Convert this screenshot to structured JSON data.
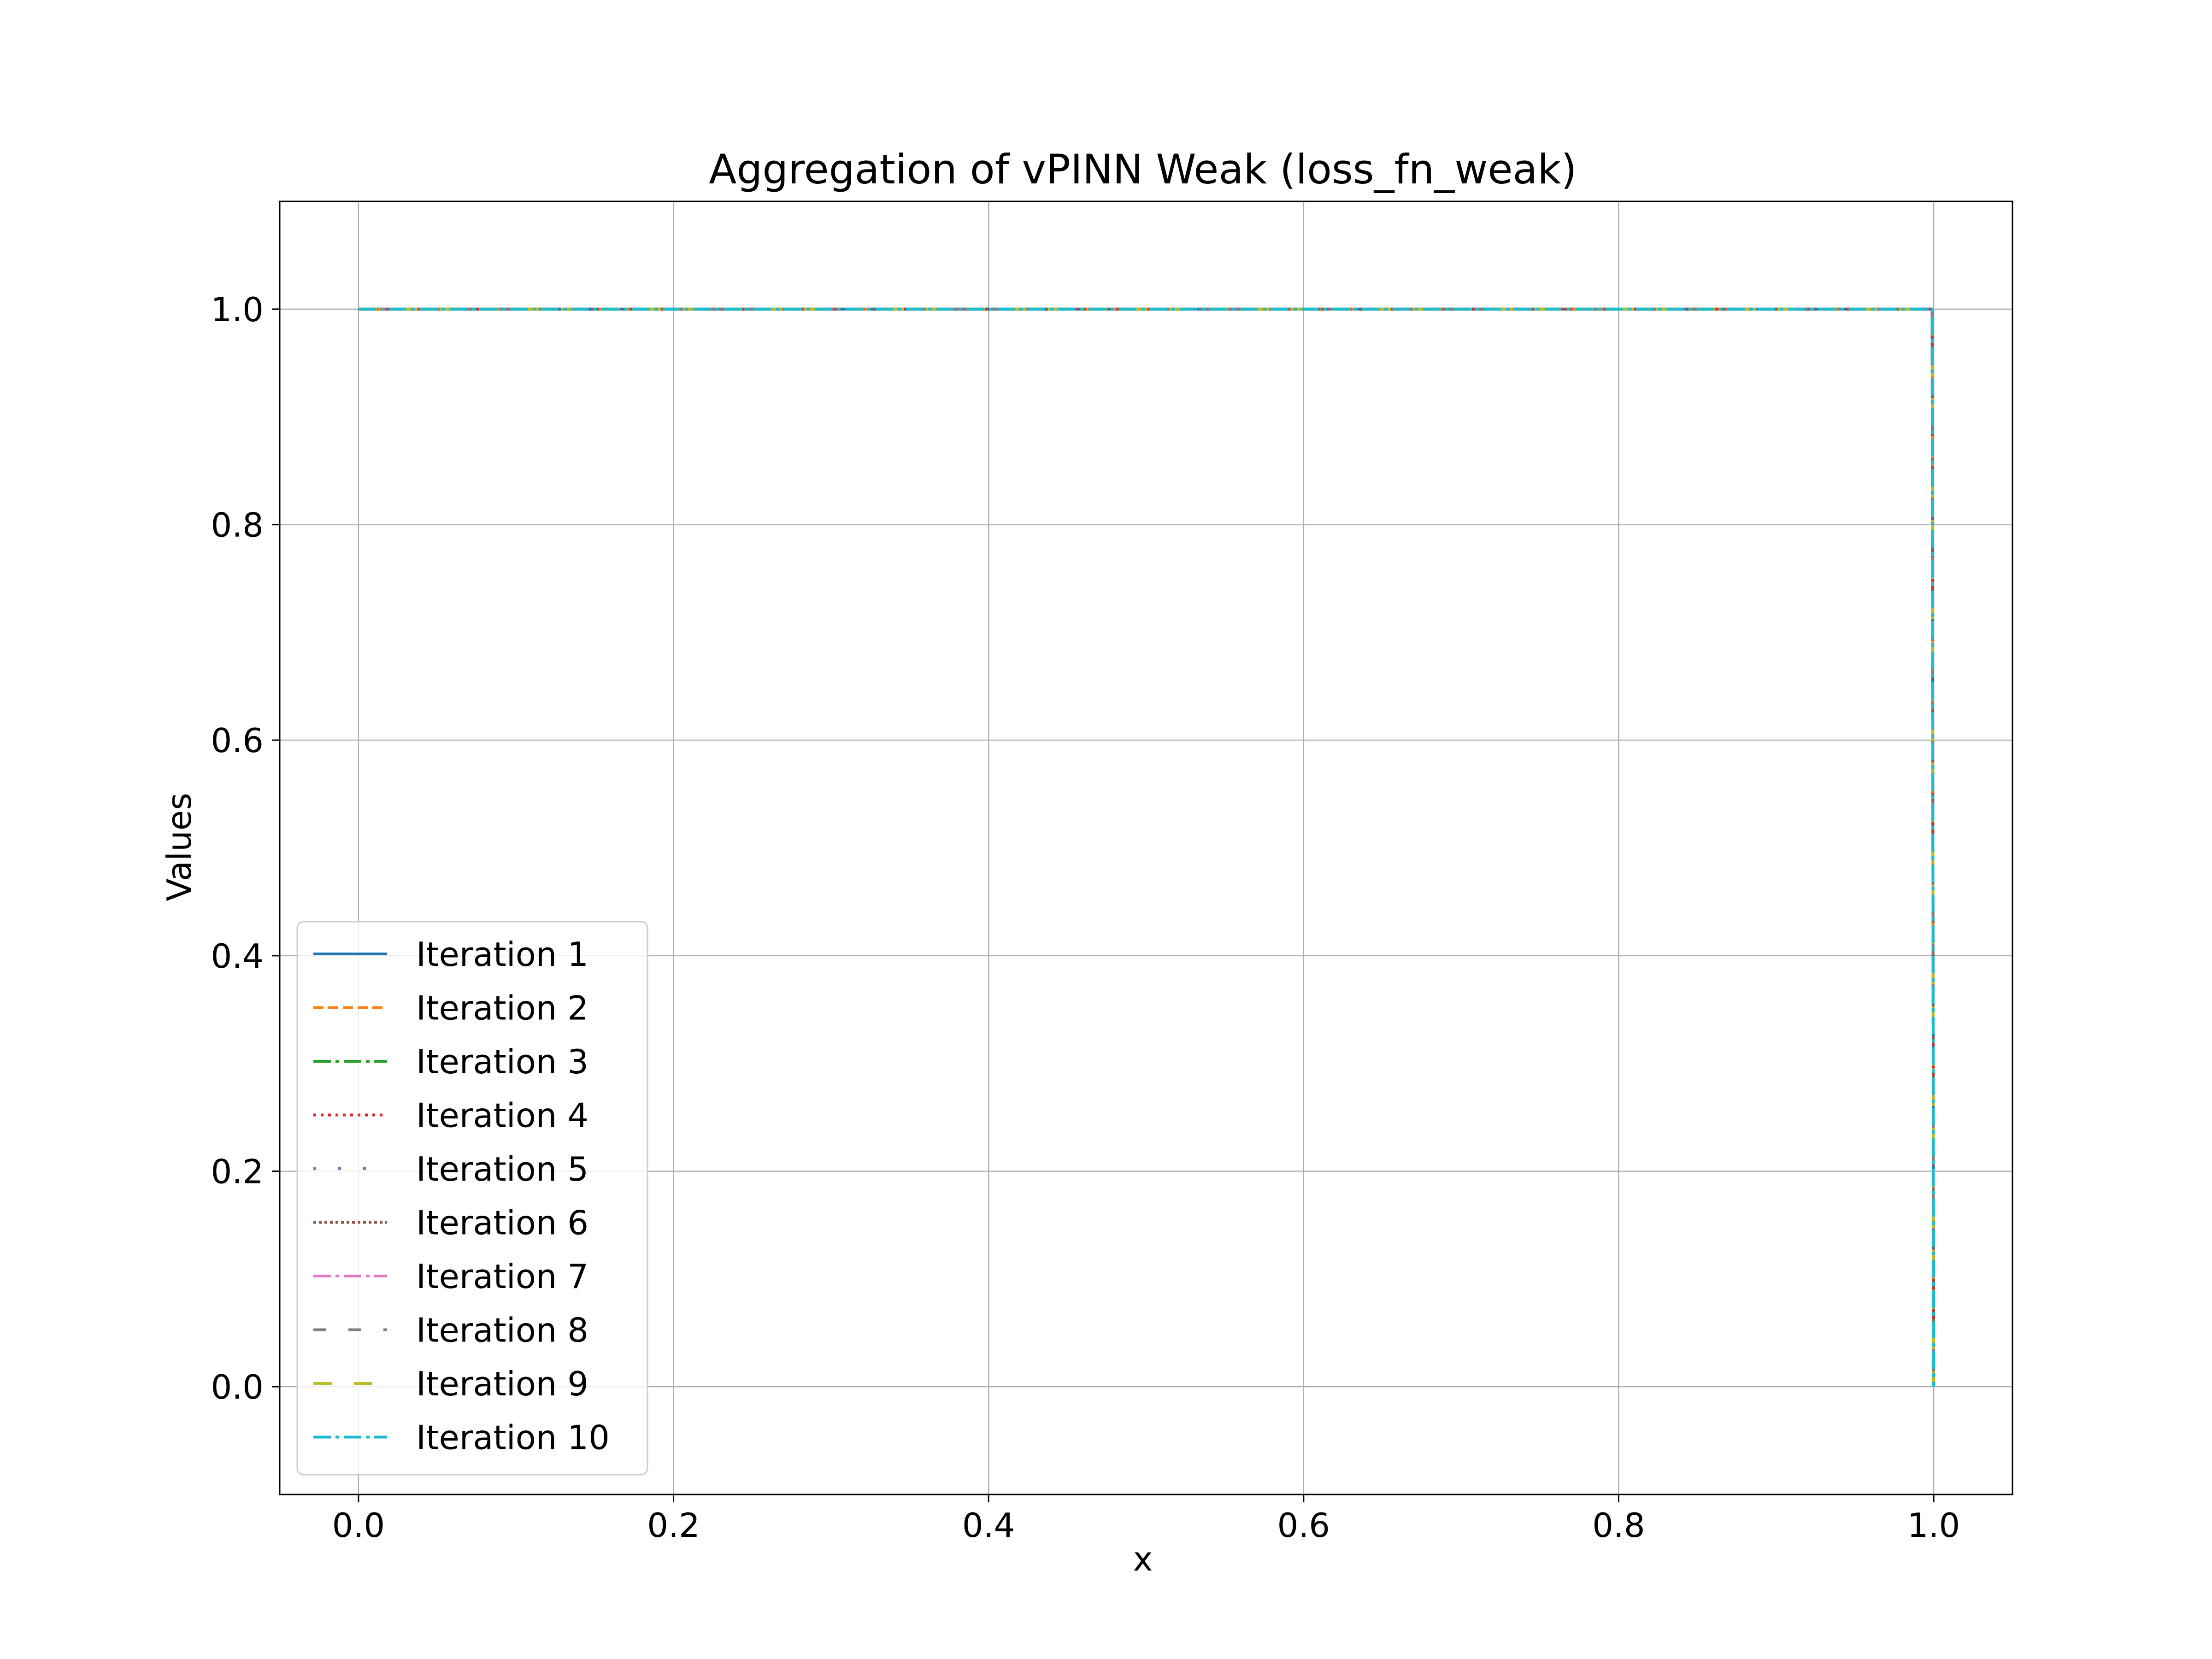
{
  "chart_data": {
    "type": "line",
    "title": "Aggregation of vPINN Weak (loss_fn_weak)",
    "xlabel": "x",
    "ylabel": "Values",
    "xlim": [
      -0.05,
      1.05
    ],
    "ylim": [
      -0.1,
      1.1
    ],
    "xticks": [
      0.0,
      0.2,
      0.4,
      0.6,
      0.8,
      1.0
    ],
    "xtick_labels": [
      "0.0",
      "0.2",
      "0.4",
      "0.6",
      "0.8",
      "1.0"
    ],
    "yticks": [
      0.0,
      0.2,
      0.4,
      0.6,
      0.8,
      1.0
    ],
    "ytick_labels": [
      "0.0",
      "0.2",
      "0.4",
      "0.6",
      "0.8",
      "1.0"
    ],
    "grid": true,
    "legend_position": "lower-left",
    "x": [
      0.0,
      0.999,
      1.0
    ],
    "series": [
      {
        "name": "Iteration 1",
        "values": [
          1.0,
          1.0,
          0.0
        ],
        "color": "#1f77b4",
        "dash": "solid"
      },
      {
        "name": "Iteration 2",
        "values": [
          1.0,
          1.0,
          0.0
        ],
        "color": "#ff7f0e",
        "dash": "dashed"
      },
      {
        "name": "Iteration 3",
        "values": [
          1.0,
          1.0,
          0.0
        ],
        "color": "#2ca02c",
        "dash": "dashdot"
      },
      {
        "name": "Iteration 4",
        "values": [
          1.0,
          1.0,
          0.0
        ],
        "color": "#d62728",
        "dash": "dotted"
      },
      {
        "name": "Iteration 5",
        "values": [
          1.0,
          1.0,
          0.0
        ],
        "color": "#9467bd",
        "dash": "loosedot"
      },
      {
        "name": "Iteration 6",
        "values": [
          1.0,
          1.0,
          0.0
        ],
        "color": "#8c564b",
        "dash": "densedot"
      },
      {
        "name": "Iteration 7",
        "values": [
          1.0,
          1.0,
          0.0
        ],
        "color": "#e377c2",
        "dash": "dashdot2"
      },
      {
        "name": "Iteration 8",
        "values": [
          1.0,
          1.0,
          0.0
        ],
        "color": "#7f7f7f",
        "dash": "loosedash"
      },
      {
        "name": "Iteration 9",
        "values": [
          1.0,
          1.0,
          0.0
        ],
        "color": "#bcbd22",
        "dash": "loosedash2"
      },
      {
        "name": "Iteration 10",
        "values": [
          1.0,
          1.0,
          0.0
        ],
        "color": "#17becf",
        "dash": "dashdot3"
      }
    ]
  }
}
